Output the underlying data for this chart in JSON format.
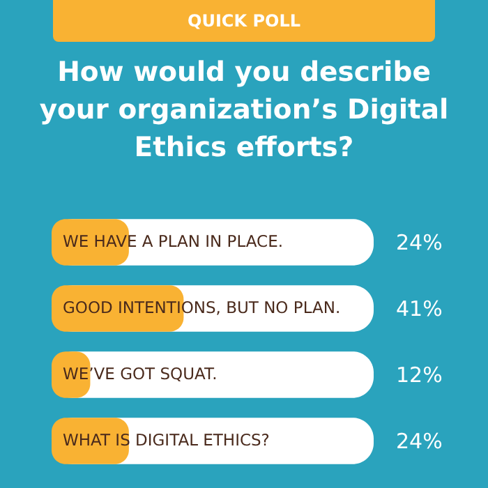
{
  "chart_data": {
    "type": "bar",
    "orientation": "horizontal",
    "title": "How would you describe your organization’s Digital Ethics efforts?",
    "annotations": [
      "QUICK POLL"
    ],
    "categories": [
      "WE HAVE A PLAN IN PLACE.",
      "GOOD INTENTIONS, BUT NO PLAN.",
      "WE’VE GOT SQUAT.",
      "WHAT IS DIGITAL ETHICS?"
    ],
    "values": [
      24,
      41,
      12,
      24
    ],
    "color": "#f9b233",
    "xlim": [
      0,
      100
    ],
    "data_labels": true,
    "value_labels": [
      "24%",
      "41%",
      "12%",
      "24%"
    ],
    "tick_labels": false
  }
}
